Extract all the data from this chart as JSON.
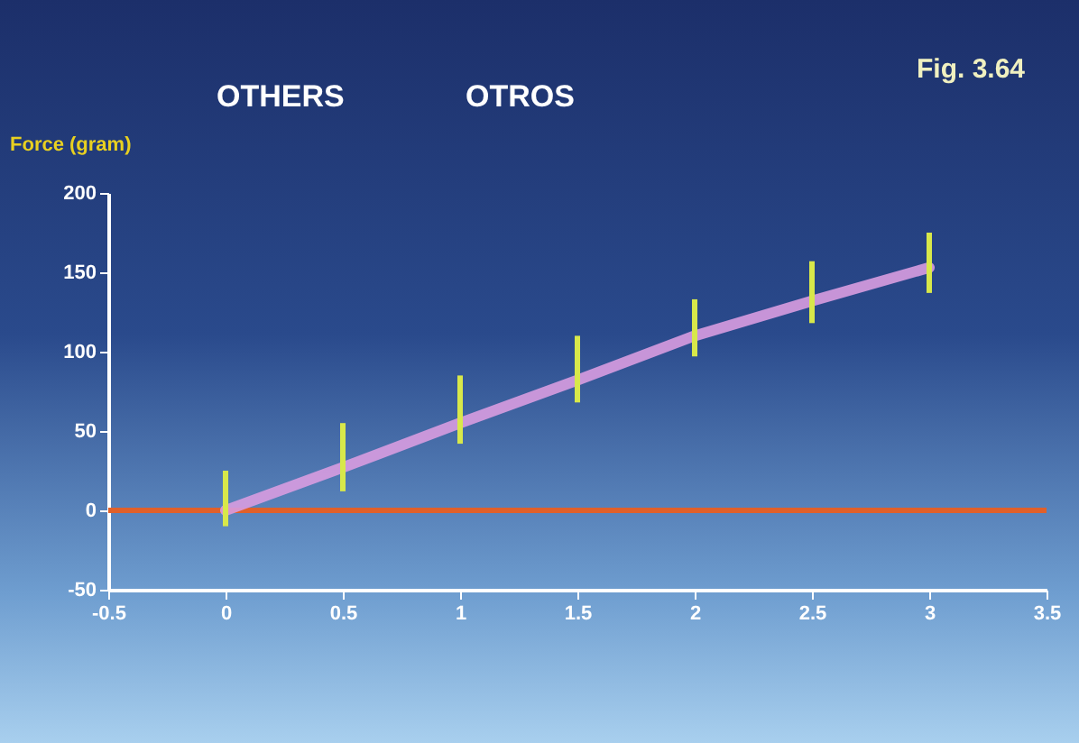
{
  "chart_data": {
    "type": "line",
    "title": "OTHERS",
    "ylabel": "Force (gram)",
    "annotations": [
      "OTROS",
      "Fig. 3.64"
    ],
    "x": [
      0,
      0.5,
      1,
      1.5,
      2,
      2.5,
      3
    ],
    "series": [
      {
        "color": "#d89ce0",
        "values": [
          0,
          27,
          55,
          82,
          110,
          132,
          153
        ],
        "errors": [
          [
            -10,
            25
          ],
          [
            12,
            55
          ],
          [
            42,
            85
          ],
          [
            68,
            110
          ],
          [
            97,
            133
          ],
          [
            118,
            157
          ],
          [
            137,
            175
          ]
        ]
      }
    ],
    "xlim": [
      -0.5,
      3.5
    ],
    "xticks": [
      -0.5,
      0,
      0.5,
      1,
      1.5,
      2,
      2.5,
      3,
      3.5
    ],
    "ylim": [
      -50,
      200
    ],
    "yticks": [
      -50,
      0,
      50,
      100,
      150,
      200
    ],
    "ref_lines": [
      {
        "axis": "y",
        "value": 0,
        "color": "#e0602a"
      }
    ]
  }
}
